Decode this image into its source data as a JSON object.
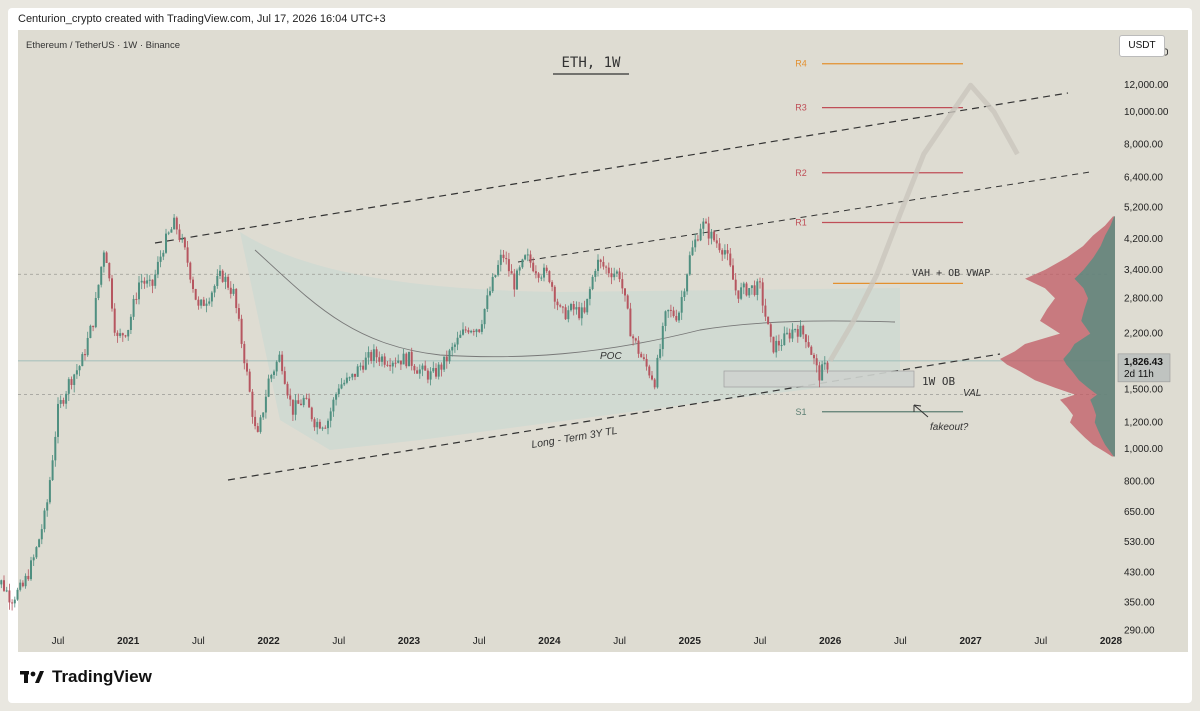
{
  "header": {
    "caption": "Centurion_crypto created with TradingView.com, Jul 17, 2026 16:04 UTC+3"
  },
  "footer": {
    "brand": "TradingView"
  },
  "colors": {
    "background": "#dedcd2",
    "candle_up": "#4f8f80",
    "candle_down": "#b65660",
    "orange": "#e3902f",
    "red": "#bf4e57",
    "teal_zone": "#b9d6d3"
  },
  "chart_data": {
    "type": "candlestick",
    "symbol": "Ethereum / TetherUS · 1W · Binance",
    "title": "ETH, 1W",
    "currency": "USDT",
    "last_price": "1,826.43",
    "countdown": "2d 11h",
    "y_scale": "log",
    "ylim": [
      250,
      17500
    ],
    "x_ticks": [
      "Jul",
      "2021",
      "Jul",
      "2022",
      "Jul",
      "2023",
      "Jul",
      "2024",
      "Jul",
      "2025",
      "Jul",
      "2026",
      "Jul",
      "2027",
      "Jul",
      "2028"
    ],
    "y_ticks": [
      "15,000.00",
      "12,000.00",
      "10,000.00",
      "8,000.00",
      "6,400.00",
      "5,200.00",
      "4,200.00",
      "3,400.00",
      "2,800.00",
      "2,200.00",
      "1,500.00",
      "1,200.00",
      "1,000.00",
      "800.00",
      "650.00",
      "530.00",
      "430.00",
      "350.00",
      "290.00"
    ],
    "levels": [
      {
        "label": "R4",
        "price": 13900,
        "color": "#e3902f"
      },
      {
        "label": "R3",
        "price": 10300,
        "color": "#bf4e57"
      },
      {
        "label": "R2",
        "price": 6600,
        "color": "#bf4e57"
      },
      {
        "label": "R1",
        "price": 4700,
        "color": "#bf4e57"
      },
      {
        "label": "S1",
        "price": 1290,
        "color": "#5d7f73"
      }
    ],
    "annotations": {
      "vah": "VAH + OB VWAP",
      "poc": "POC",
      "ob": "1W OB",
      "val": "VAL",
      "fakeout": "fakeout?",
      "trendline": "Long - Term 3Y TL"
    },
    "price_path": [
      [
        "2020-07",
        300
      ],
      [
        "2020-08",
        410
      ],
      [
        "2020-09",
        360
      ],
      [
        "2020-10",
        390
      ],
      [
        "2020-11",
        480
      ],
      [
        "2020-12",
        660
      ],
      [
        "2021-01",
        1300
      ],
      [
        "2021-02",
        1600
      ],
      [
        "2021-03",
        1800
      ],
      [
        "2021-04",
        2400
      ],
      [
        "2021-05",
        4100
      ],
      [
        "2021-06",
        2100
      ],
      [
        "2021-07",
        2300
      ],
      [
        "2021-08",
        3200
      ],
      [
        "2021-09",
        3000
      ],
      [
        "2021-10",
        4000
      ],
      [
        "2021-11",
        4700
      ],
      [
        "2021-12",
        3700
      ],
      [
        "2022-01",
        2600
      ],
      [
        "2022-02",
        2900
      ],
      [
        "2022-03",
        3300
      ],
      [
        "2022-04",
        2900
      ],
      [
        "2022-05",
        1800
      ],
      [
        "2022-06",
        1050
      ],
      [
        "2022-07",
        1600
      ],
      [
        "2022-08",
        1900
      ],
      [
        "2022-09",
        1300
      ],
      [
        "2022-10",
        1400
      ],
      [
        "2022-11",
        1200
      ],
      [
        "2022-12",
        1200
      ],
      [
        "2023-01",
        1550
      ],
      [
        "2023-02",
        1600
      ],
      [
        "2023-03",
        1800
      ],
      [
        "2023-04",
        1900
      ],
      [
        "2023-05",
        1850
      ],
      [
        "2023-06",
        1850
      ],
      [
        "2023-07",
        1850
      ],
      [
        "2023-08",
        1700
      ],
      [
        "2023-09",
        1650
      ],
      [
        "2023-10",
        1800
      ],
      [
        "2023-11",
        2050
      ],
      [
        "2023-12",
        2300
      ],
      [
        "2024-01",
        2300
      ],
      [
        "2024-02",
        3000
      ],
      [
        "2024-03",
        3800
      ],
      [
        "2024-04",
        3100
      ],
      [
        "2024-05",
        3700
      ],
      [
        "2024-06",
        3400
      ],
      [
        "2024-07",
        3250
      ],
      [
        "2024-08",
        2500
      ],
      [
        "2024-09",
        2600
      ],
      [
        "2024-10",
        2500
      ],
      [
        "2024-11",
        3600
      ],
      [
        "2024-12",
        3400
      ],
      [
        "2025-01",
        3300
      ],
      [
        "2025-02",
        2200
      ],
      [
        "2025-03",
        1820
      ],
      [
        "2025-04",
        1600
      ],
      [
        "2025-05",
        2550
      ],
      [
        "2025-06",
        2500
      ],
      [
        "2025-07",
        3700
      ],
      [
        "2025-08",
        4700
      ],
      [
        "2025-09",
        4200
      ],
      [
        "2025-10",
        3900
      ],
      [
        "2025-11",
        2900
      ],
      [
        "2025-12",
        3000
      ],
      [
        "2026-01",
        3000
      ],
      [
        "2026-02",
        2000
      ],
      [
        "2026-03",
        2100
      ],
      [
        "2026-04",
        2300
      ],
      [
        "2026-05",
        2150
      ],
      [
        "2026-06",
        1650
      ],
      [
        "2026-07",
        1826
      ]
    ],
    "projection_path": [
      [
        "2026-07",
        1826
      ],
      [
        "2026-09",
        2400
      ],
      [
        "2026-11",
        3300
      ],
      [
        "2027-01",
        5000
      ],
      [
        "2027-03",
        7500
      ],
      [
        "2027-05",
        9500
      ],
      [
        "2027-07",
        12000
      ],
      [
        "2027-09",
        10000
      ],
      [
        "2027-11",
        7500
      ]
    ]
  }
}
